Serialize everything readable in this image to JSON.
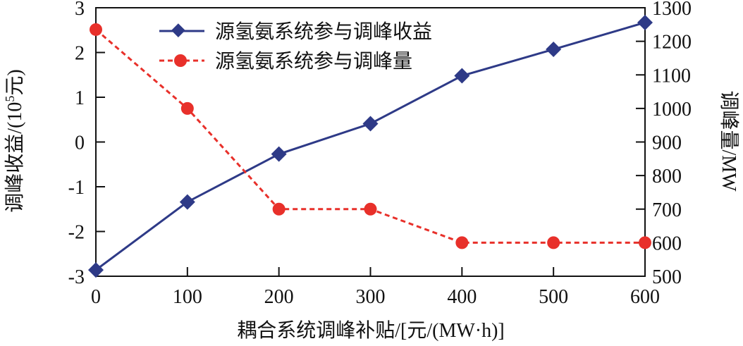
{
  "chart_data": {
    "type": "line",
    "x": [
      0,
      100,
      200,
      300,
      400,
      500,
      600
    ],
    "xlabel": "耦合系统调峰补贴/[元/(MW·h)]",
    "xlim": [
      0,
      600
    ],
    "xticks": [
      "0",
      "100",
      "200",
      "300",
      "400",
      "500",
      "600"
    ],
    "ylabel_left": {
      "before": "调峰收益/(10",
      "sup": "5",
      "after": "元)"
    },
    "ylim_left": [
      -3,
      3
    ],
    "yticks_left": [
      "3",
      "2",
      "1",
      "0",
      "-1",
      "-2",
      "-3"
    ],
    "ylabel_right": "调峰量/MW",
    "ylim_right": [
      500,
      1300
    ],
    "yticks_right": [
      "1300",
      "1200",
      "1100",
      "1000",
      "900",
      "800",
      "700",
      "600",
      "500"
    ],
    "grid": false,
    "legend_position": "top-left",
    "series": [
      {
        "name": "源氢氨系统参与调峰收益",
        "axis": "left",
        "marker": "diamond",
        "line": "solid",
        "color": "#2e3a87",
        "values": [
          -2.86,
          -1.34,
          -0.27,
          0.41,
          1.48,
          2.07,
          2.67
        ]
      },
      {
        "name": "源氢氨系统参与调峰量",
        "axis": "right",
        "marker": "circle",
        "line": "dashed",
        "color": "#e8302a",
        "values": [
          1235,
          1000,
          700,
          700,
          600,
          600,
          600
        ]
      }
    ]
  }
}
